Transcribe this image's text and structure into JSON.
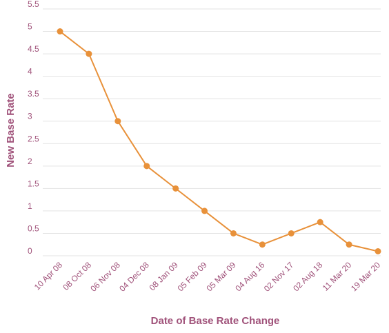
{
  "colors": {
    "line": "#E8913A",
    "point": "#E8913A",
    "text": "#A0527A",
    "grid": "#E3E3E3"
  },
  "chart_data": {
    "type": "line",
    "title": "",
    "xlabel": "Date of Base Rate Change",
    "ylabel": "New Base Rate",
    "categories": [
      "10 Apr 08",
      "08 Oct 08",
      "06 Nov 08",
      "04 Dec 08",
      "08 Jan 09",
      "05 Feb 09",
      "05 Mar 09",
      "04 Aug 16",
      "02 Nov 17",
      "02 Aug 18",
      "11 Mar 20",
      "19 Mar 20"
    ],
    "series": [
      {
        "values": [
          5,
          4.5,
          3,
          2,
          1.5,
          1,
          0.5,
          0.25,
          0.5,
          0.75,
          0.25,
          0.1
        ]
      }
    ],
    "ylim": [
      0,
      5.5
    ],
    "yticks": [
      "0",
      "0.5",
      "1",
      "1.5",
      "2",
      "2.5",
      "3",
      "3.5",
      "4",
      "4.5",
      "5",
      "5.5"
    ],
    "grid": true,
    "legend": "none"
  }
}
